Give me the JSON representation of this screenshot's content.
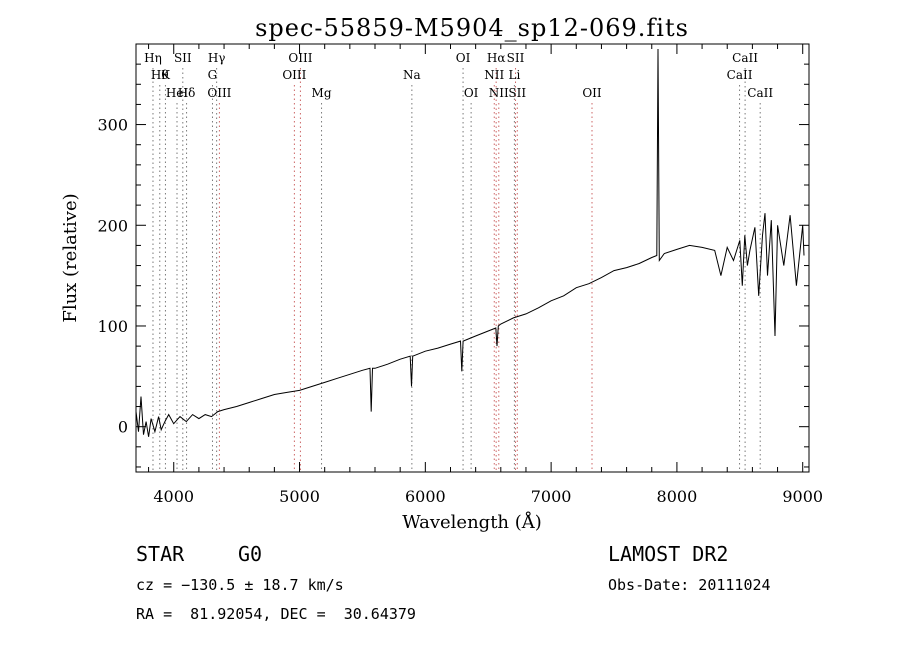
{
  "chart_data": {
    "type": "line",
    "title": "spec-55859-M5904_sp12-069.fits",
    "xlabel": "Wavelength (Å)",
    "ylabel": "Flux (relative)",
    "xlim": [
      3700,
      9050
    ],
    "ylim": [
      -45,
      380
    ],
    "x_ticks": [
      4000,
      5000,
      6000,
      7000,
      8000,
      9000
    ],
    "y_ticks": [
      0,
      100,
      200,
      300
    ],
    "grid": false,
    "series": [
      {
        "values_points": [
          [
            3700,
            15
          ],
          [
            3720,
            -5
          ],
          [
            3740,
            30
          ],
          [
            3760,
            -8
          ],
          [
            3780,
            5
          ],
          [
            3800,
            -10
          ],
          [
            3820,
            8
          ],
          [
            3850,
            -5
          ],
          [
            3880,
            10
          ],
          [
            3900,
            -3
          ],
          [
            3930,
            5
          ],
          [
            3960,
            12
          ],
          [
            4000,
            3
          ],
          [
            4050,
            10
          ],
          [
            4100,
            5
          ],
          [
            4150,
            12
          ],
          [
            4200,
            8
          ],
          [
            4250,
            12
          ],
          [
            4300,
            10
          ],
          [
            4350,
            15
          ],
          [
            4400,
            17
          ],
          [
            4500,
            20
          ],
          [
            4600,
            24
          ],
          [
            4700,
            28
          ],
          [
            4800,
            32
          ],
          [
            4900,
            34
          ],
          [
            5000,
            36
          ],
          [
            5100,
            40
          ],
          [
            5200,
            44
          ],
          [
            5300,
            48
          ],
          [
            5400,
            52
          ],
          [
            5500,
            56
          ],
          [
            5560,
            58
          ],
          [
            5570,
            15
          ],
          [
            5580,
            58
          ],
          [
            5600,
            58
          ],
          [
            5700,
            62
          ],
          [
            5800,
            67
          ],
          [
            5880,
            70
          ],
          [
            5890,
            40
          ],
          [
            5900,
            70
          ],
          [
            6000,
            75
          ],
          [
            6100,
            78
          ],
          [
            6200,
            82
          ],
          [
            6280,
            85
          ],
          [
            6290,
            55
          ],
          [
            6300,
            85
          ],
          [
            6400,
            90
          ],
          [
            6500,
            95
          ],
          [
            6560,
            98
          ],
          [
            6570,
            80
          ],
          [
            6580,
            100
          ],
          [
            6600,
            102
          ],
          [
            6700,
            108
          ],
          [
            6800,
            112
          ],
          [
            6900,
            118
          ],
          [
            7000,
            125
          ],
          [
            7100,
            130
          ],
          [
            7200,
            138
          ],
          [
            7300,
            142
          ],
          [
            7400,
            148
          ],
          [
            7500,
            155
          ],
          [
            7600,
            158
          ],
          [
            7700,
            162
          ],
          [
            7800,
            168
          ],
          [
            7840,
            170
          ],
          [
            7850,
            375
          ],
          [
            7860,
            165
          ],
          [
            7900,
            172
          ],
          [
            8000,
            176
          ],
          [
            8100,
            180
          ],
          [
            8200,
            178
          ],
          [
            8300,
            175
          ],
          [
            8350,
            150
          ],
          [
            8400,
            178
          ],
          [
            8450,
            165
          ],
          [
            8500,
            185
          ],
          [
            8520,
            140
          ],
          [
            8540,
            190
          ],
          [
            8560,
            160
          ],
          [
            8580,
            175
          ],
          [
            8620,
            198
          ],
          [
            8650,
            130
          ],
          [
            8680,
            190
          ],
          [
            8700,
            212
          ],
          [
            8720,
            150
          ],
          [
            8750,
            205
          ],
          [
            8780,
            90
          ],
          [
            8800,
            200
          ],
          [
            8850,
            160
          ],
          [
            8900,
            210
          ],
          [
            8950,
            140
          ],
          [
            9000,
            200
          ],
          [
            9010,
            170
          ]
        ]
      }
    ],
    "line_groups": [
      {
        "color": "#7a7a7a",
        "lines": [
          {
            "wavelength": 3835,
            "label": "Hη",
            "row": 1
          },
          {
            "wavelength": 3889,
            "label": "Hθ",
            "row": 2
          },
          {
            "wavelength": 3934,
            "label": "K",
            "row": 2
          },
          {
            "wavelength": 4026,
            "label": "HeI",
            "row": 3
          },
          {
            "wavelength": 4072,
            "label": "SII",
            "row": 1
          },
          {
            "wavelength": 4102,
            "label": "Hδ",
            "row": 3
          },
          {
            "wavelength": 4308,
            "label": "G",
            "row": 2
          },
          {
            "wavelength": 4341,
            "label": "Hγ",
            "row": 1
          },
          {
            "wavelength": 5175,
            "label": "Mg",
            "row": 3
          },
          {
            "wavelength": 5893,
            "label": "Na",
            "row": 2
          },
          {
            "wavelength": 6300,
            "label": "OI",
            "row": 1
          },
          {
            "wavelength": 6364,
            "label": "OI",
            "row": 3
          },
          {
            "wavelength": 6708,
            "label": "Li",
            "row": 2
          },
          {
            "wavelength": 8498,
            "label": "CaII",
            "row": 2
          },
          {
            "wavelength": 8542,
            "label": "CaII",
            "row": 1
          },
          {
            "wavelength": 8662,
            "label": "CaII",
            "row": 3
          }
        ]
      },
      {
        "color": "#cc6666",
        "lines": [
          {
            "wavelength": 4363,
            "label": "OIII",
            "row": 3
          },
          {
            "wavelength": 4959,
            "label": "OIII",
            "row": 2
          },
          {
            "wavelength": 5007,
            "label": "OIII",
            "row": 1
          },
          {
            "wavelength": 6548,
            "label": "NII",
            "row": 2
          },
          {
            "wavelength": 6563,
            "label": "Hα",
            "row": 1
          },
          {
            "wavelength": 6584,
            "label": "NII",
            "row": 3
          },
          {
            "wavelength": 6717,
            "label": "SII",
            "row": 1
          },
          {
            "wavelength": 6731,
            "label": "SII",
            "row": 3
          },
          {
            "wavelength": 7325,
            "label": "OII",
            "row": 3
          }
        ]
      }
    ]
  },
  "info": {
    "object_class": "STAR",
    "subclass": "G0",
    "survey": "LAMOST DR2",
    "redshift": "cz = −130.5 ± 18.7 km/s",
    "obs_date": "Obs-Date: 20111024",
    "coords": "RA =  81.92054, DEC =  30.64379"
  }
}
